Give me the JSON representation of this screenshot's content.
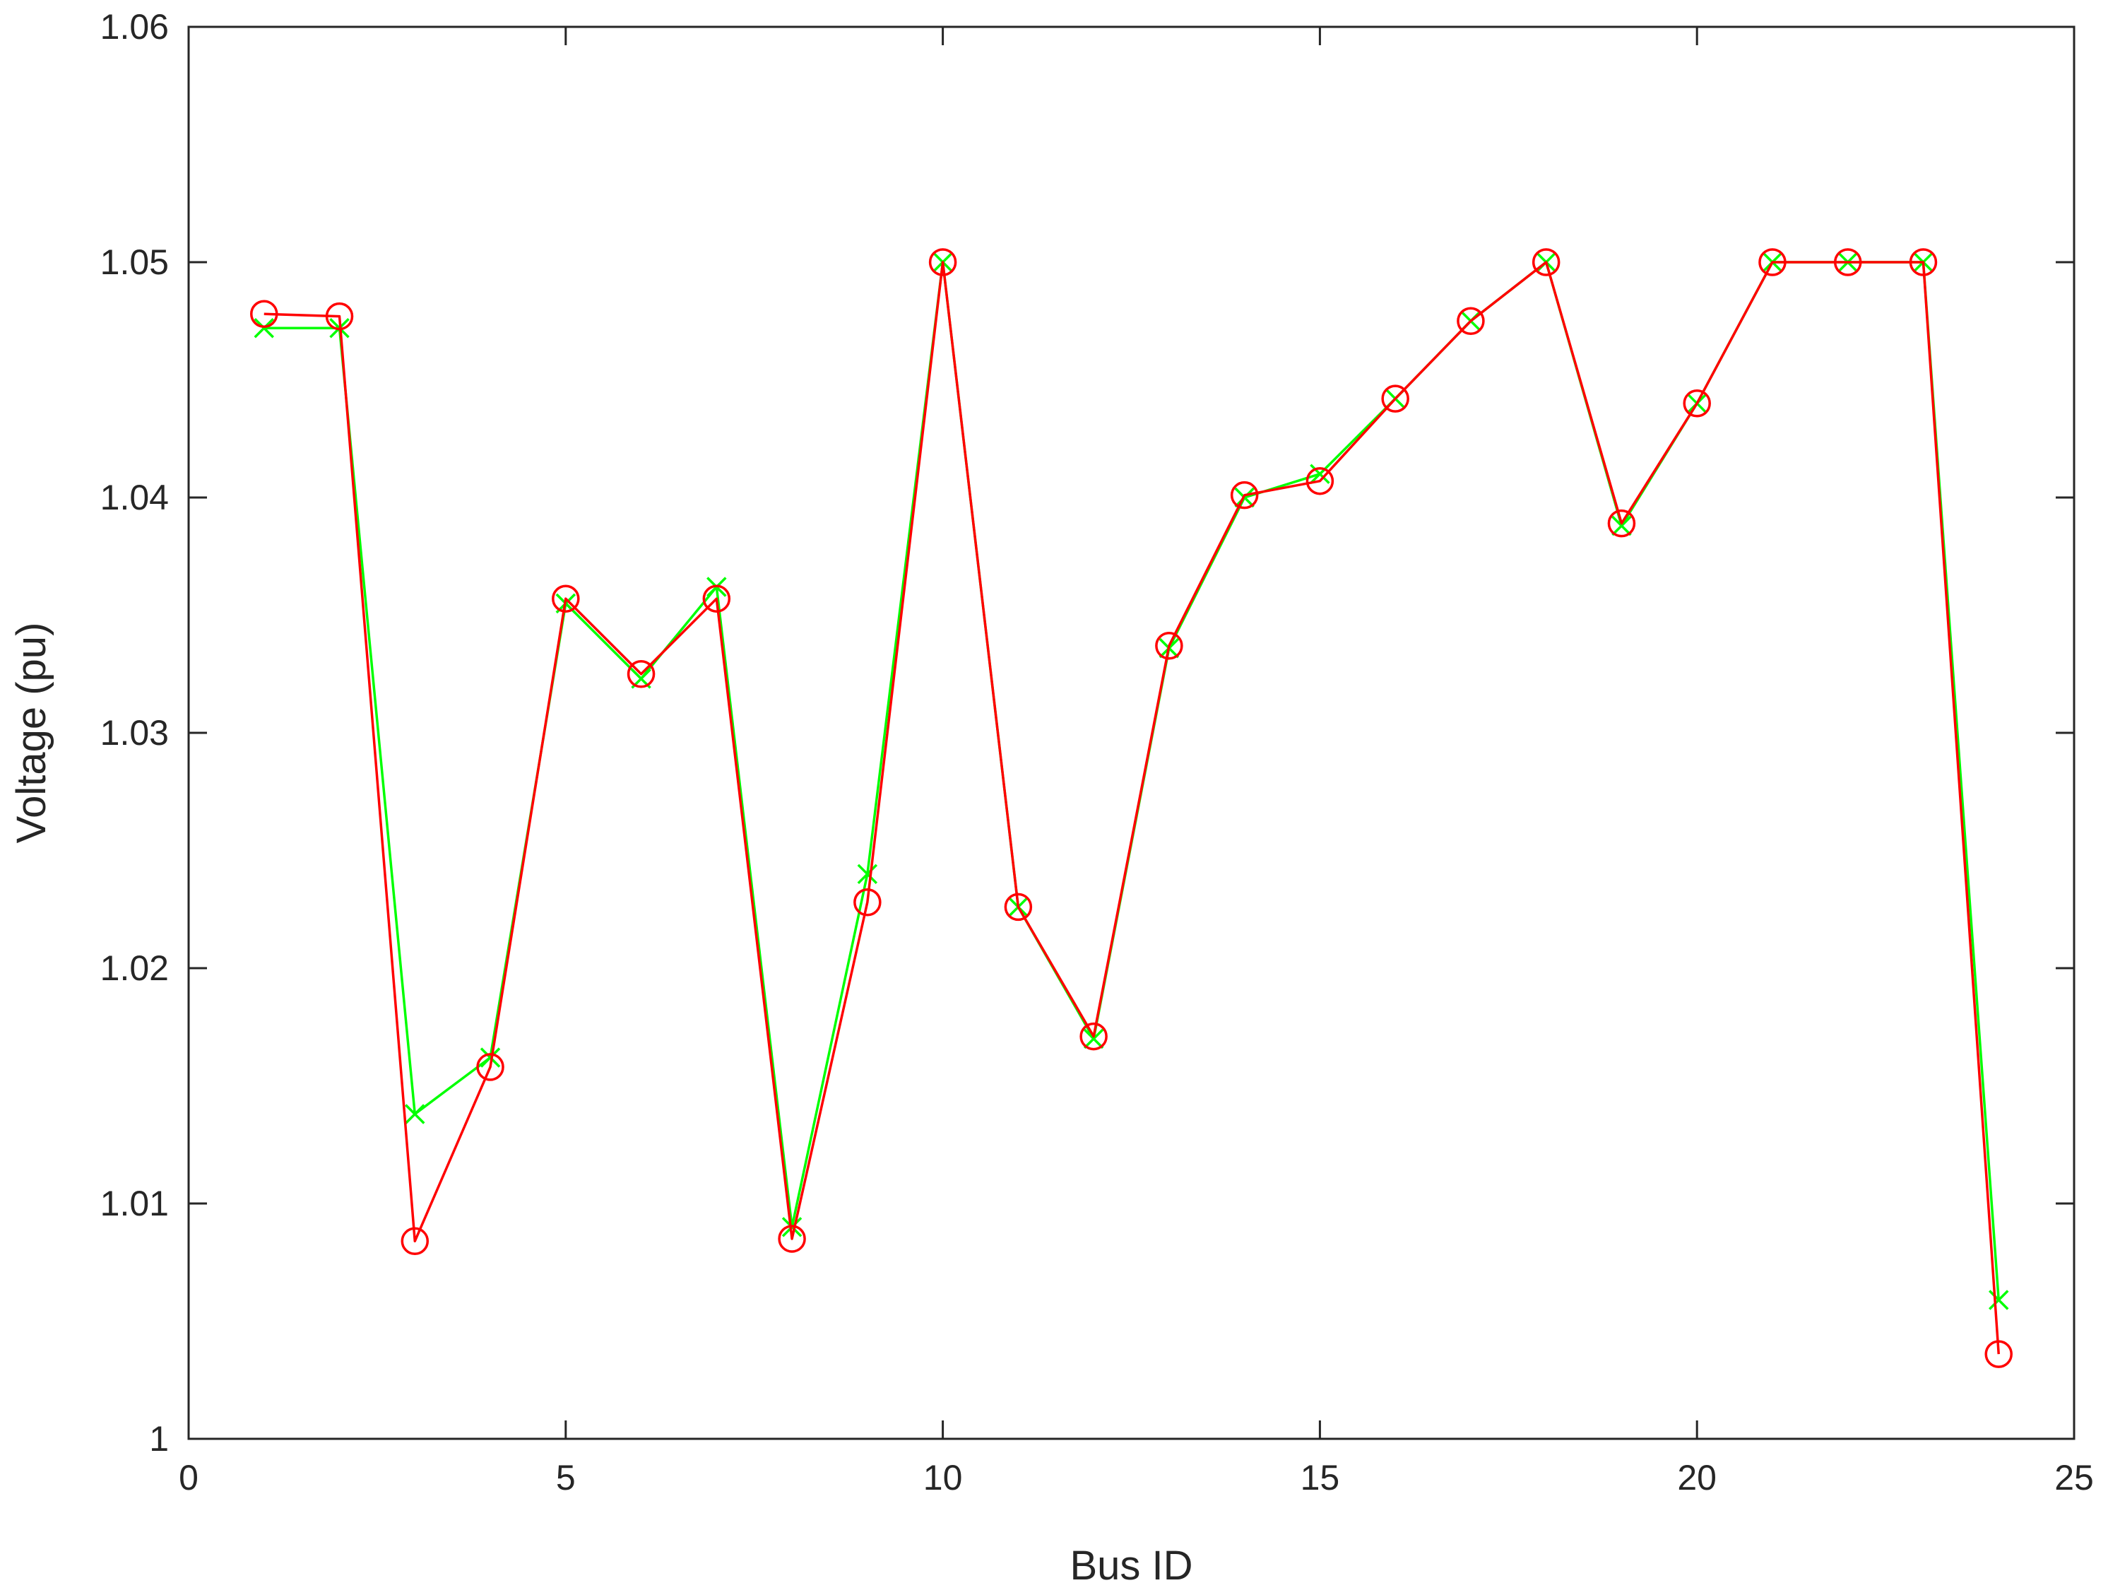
{
  "chart_data": {
    "type": "line",
    "title": "",
    "xlabel": "Bus ID",
    "ylabel": "Voltage (pu)",
    "xlim": [
      0,
      25
    ],
    "ylim": [
      1.0,
      1.06
    ],
    "x_ticks": [
      0,
      5,
      10,
      15,
      20,
      25
    ],
    "y_ticks": [
      1.0,
      1.01,
      1.02,
      1.03,
      1.04,
      1.05,
      1.06
    ],
    "x_tick_labels": [
      "0",
      "5",
      "10",
      "15",
      "20",
      "25"
    ],
    "y_tick_labels": [
      "1",
      "1.01",
      "1.02",
      "1.03",
      "1.04",
      "1.05",
      "1.06"
    ],
    "grid": false,
    "legend": "none",
    "x": [
      1,
      2,
      3,
      4,
      5,
      6,
      7,
      8,
      9,
      10,
      11,
      12,
      13,
      14,
      15,
      16,
      17,
      18,
      19,
      20,
      21,
      22,
      23,
      24
    ],
    "series": [
      {
        "marker": "x",
        "color": "#00ff00",
        "values": [
          1.0472,
          1.0472,
          1.0138,
          1.0162,
          1.0355,
          1.0323,
          1.0362,
          1.009,
          1.024,
          1.05,
          1.0226,
          1.017,
          1.0336,
          1.04,
          1.041,
          1.0442,
          1.0475,
          1.05,
          1.0388,
          1.044,
          1.05,
          1.05,
          1.05,
          1.0059
        ]
      },
      {
        "marker": "o",
        "color": "#ff0000",
        "values": [
          1.0478,
          1.0477,
          1.0084,
          1.0158,
          1.0357,
          1.0325,
          1.0357,
          1.0085,
          1.0228,
          1.05,
          1.0226,
          1.0171,
          1.0337,
          1.0401,
          1.0407,
          1.0442,
          1.0475,
          1.05,
          1.0389,
          1.044,
          1.05,
          1.05,
          1.05,
          1.0036
        ]
      }
    ]
  }
}
